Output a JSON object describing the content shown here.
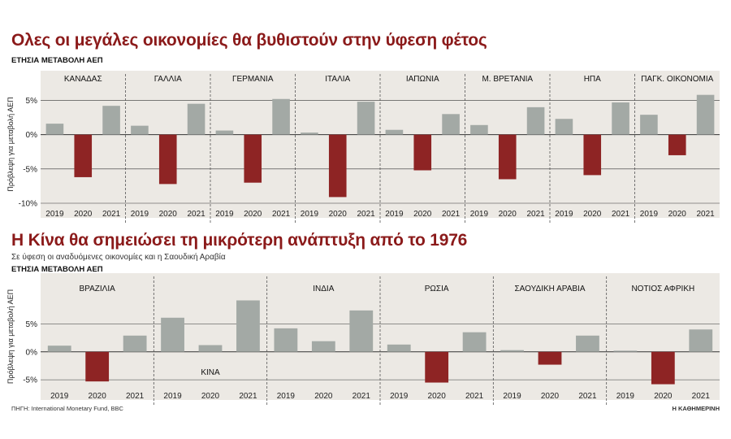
{
  "top": {
    "title": "Ολες οι μεγάλες οικονομίες θα βυθιστούν στην ύφεση φέτος",
    "section_label": "ΕΤΗΣΙΑ ΜΕΤΑΒΟΛΗ ΑΕΠ"
  },
  "bottom": {
    "title": "Η Κίνα θα σημειώσει τη μικρότερη ανάπτυξη από το 1976",
    "subtitle": "Σε ύφεση οι αναδυόμενες οικονομίες και η Σαουδική Αραβία",
    "section_label": "ΕΤΗΣΙΑ ΜΕΤΑΒΟΛΗ ΑΕΠ"
  },
  "footer": {
    "source": "ΠΗΓΗ: International Monetary Fund, BBC",
    "brand": "Η ΚΑΘΗΜΕΡΙΝΗ"
  },
  "colors": {
    "positive": "#a3a9a5",
    "negative": "#8e2424",
    "panel_bg": "#ece9e4",
    "axis_text": "#222222"
  },
  "chart_data": [
    {
      "type": "bar",
      "ylabel": "Πρόβλεψη για μεταβολή ΑΕΠ",
      "ylim": [
        -10,
        6
      ],
      "yticks": [
        5,
        0,
        -5,
        -10
      ],
      "ytick_labels": [
        "5%",
        "0%",
        "-5%",
        "-10%"
      ],
      "grid": true,
      "categories": [
        "2019",
        "2020",
        "2021"
      ],
      "groups": [
        {
          "name": "ΚΑΝΑΔΑΣ",
          "values": [
            1.6,
            -6.2,
            4.2
          ]
        },
        {
          "name": "ΓΑΛΛΙΑ",
          "values": [
            1.3,
            -7.2,
            4.5
          ]
        },
        {
          "name": "ΓΕΡΜΑΝΙΑ",
          "values": [
            0.6,
            -7.0,
            5.2
          ]
        },
        {
          "name": "ΙΤΑΛΙΑ",
          "values": [
            0.3,
            -9.1,
            4.8
          ]
        },
        {
          "name": "ΙΑΠΩΝΙΑ",
          "values": [
            0.7,
            -5.2,
            3.0
          ]
        },
        {
          "name": "Μ. ΒΡΕΤΑΝΙΑ",
          "values": [
            1.4,
            -6.5,
            4.0
          ]
        },
        {
          "name": "ΗΠΑ",
          "values": [
            2.3,
            -5.9,
            4.7
          ]
        },
        {
          "name": "ΠΑΓΚ. ΟΙΚΟΝΟΜΙΑ",
          "values": [
            2.9,
            -3.0,
            5.8
          ]
        }
      ]
    },
    {
      "type": "bar",
      "ylabel": "Πρόβλεψη για μεταβολή ΑΕΠ",
      "ylim": [
        -6,
        10
      ],
      "yticks": [
        5,
        0,
        -5
      ],
      "ytick_labels": [
        "5%",
        "0%",
        "-5%"
      ],
      "grid": true,
      "categories": [
        "2019",
        "2020",
        "2021"
      ],
      "groups": [
        {
          "name": "ΒΡΑΖΙΛΙΑ",
          "values": [
            1.1,
            -5.3,
            2.9
          ]
        },
        {
          "name": "ΚΙΝΑ",
          "values": [
            6.1,
            1.2,
            9.2
          ],
          "label_position": "below"
        },
        {
          "name": "ΙΝΔΙΑ",
          "values": [
            4.2,
            1.9,
            7.4
          ]
        },
        {
          "name": "ΡΩΣΙΑ",
          "values": [
            1.3,
            -5.5,
            3.5
          ]
        },
        {
          "name": "ΣΑΟΥΔΙΚΗ ΑΡΑΒΙΑ",
          "values": [
            0.3,
            -2.3,
            2.9
          ]
        },
        {
          "name": "ΝΟΤΙΟΣ ΑΦΡΙΚΗ",
          "values": [
            0.2,
            -5.8,
            4.0
          ]
        }
      ]
    }
  ]
}
